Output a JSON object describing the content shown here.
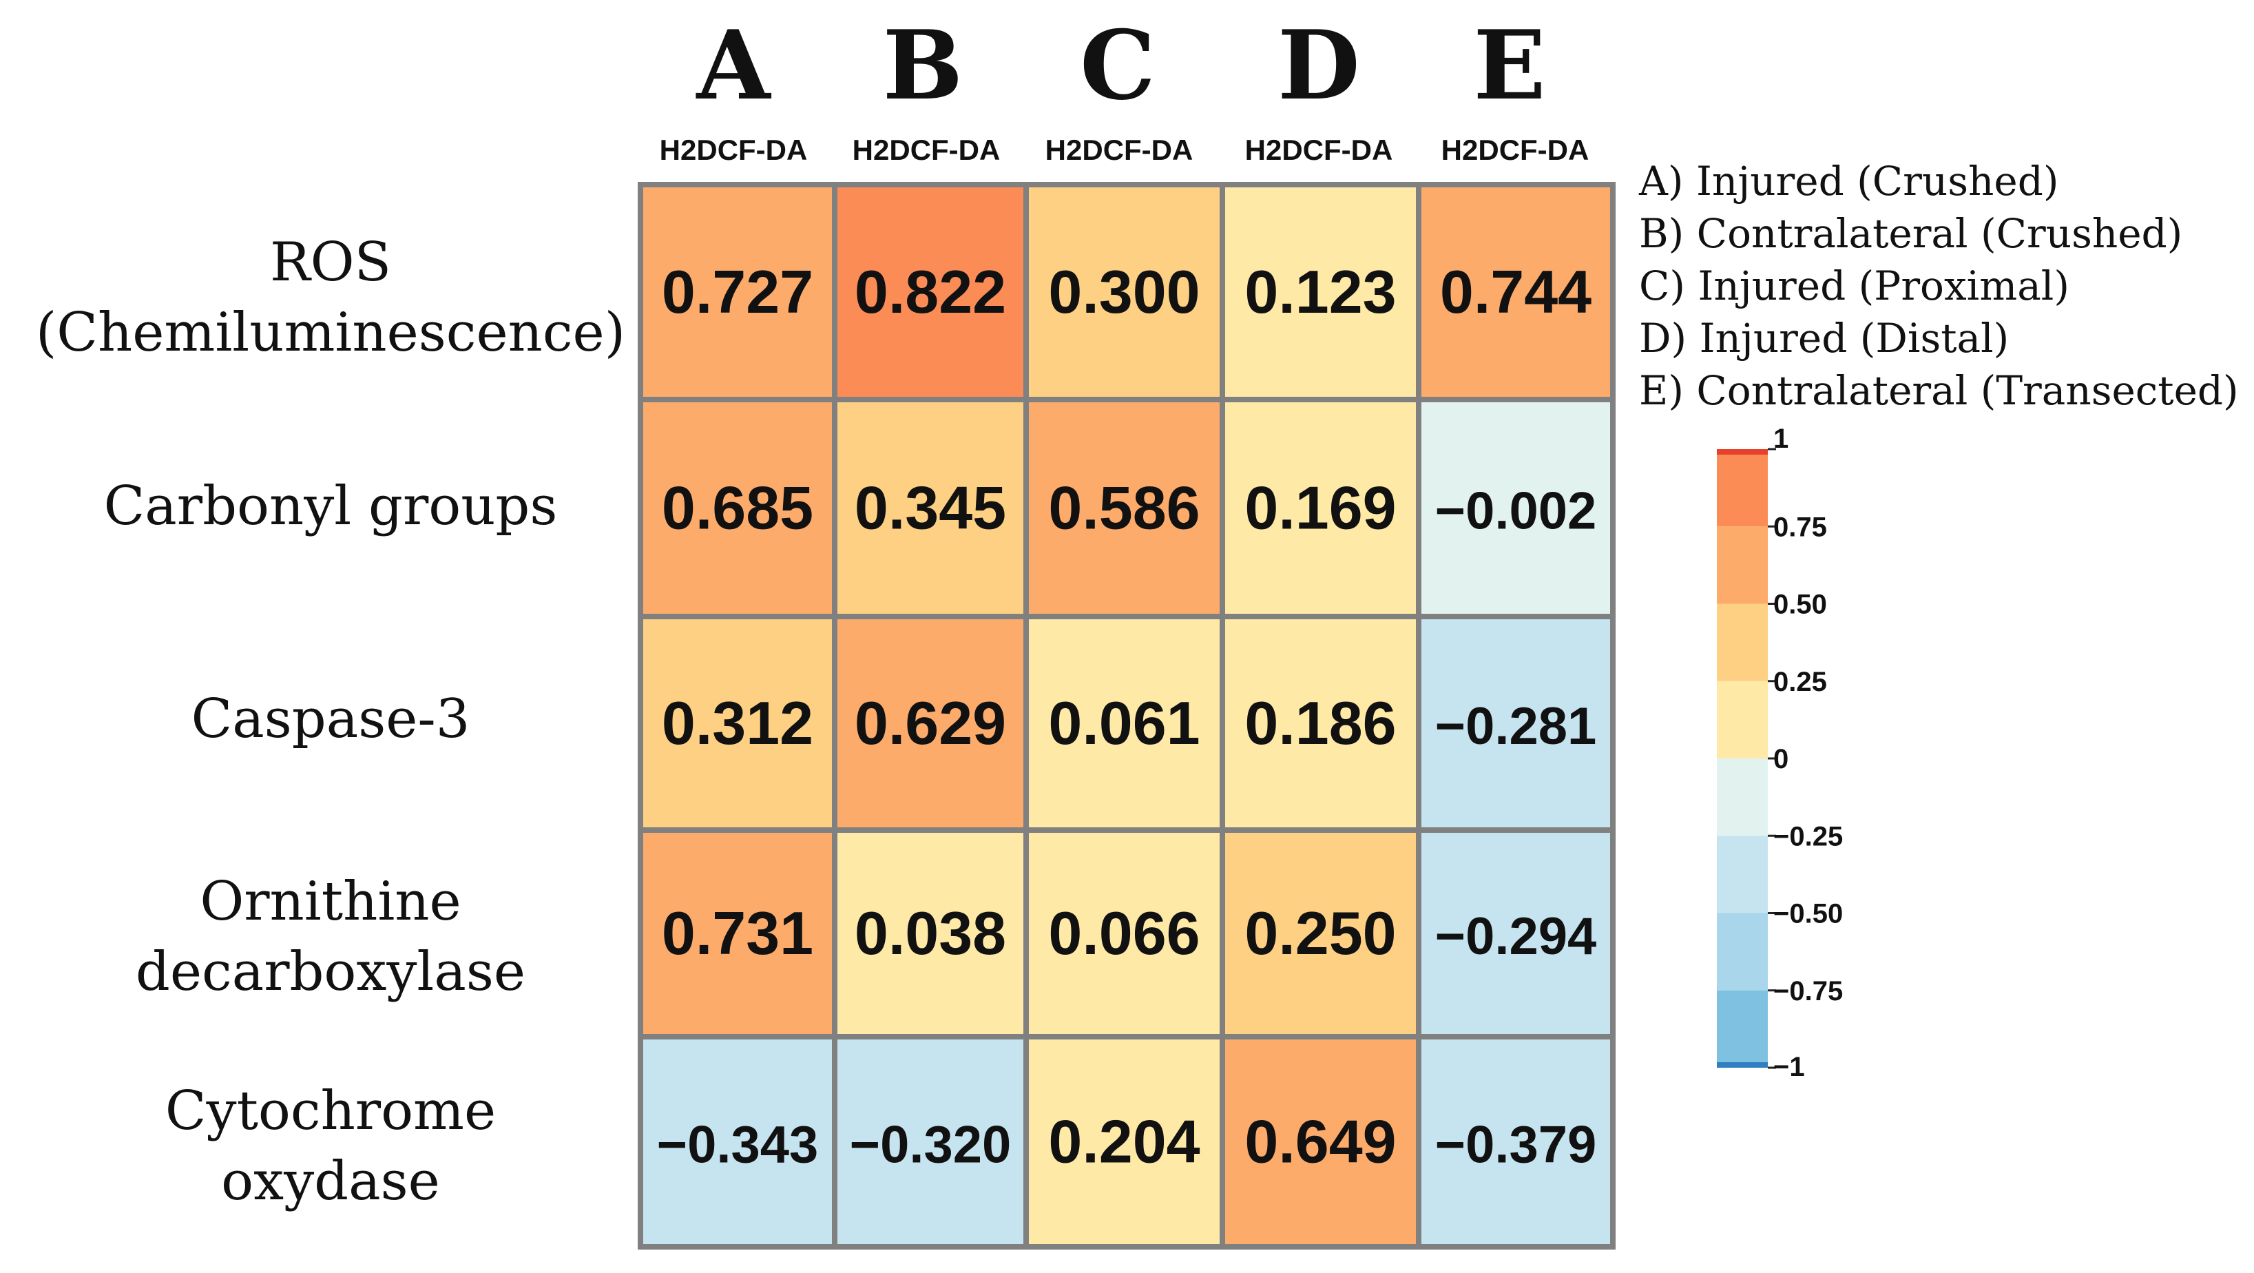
{
  "chart_data": {
    "type": "heatmap",
    "columns": [
      {
        "letter": "A",
        "sublabel": "H2DCF-DA"
      },
      {
        "letter": "B",
        "sublabel": "H2DCF-DA"
      },
      {
        "letter": "C",
        "sublabel": "H2DCF-DA"
      },
      {
        "letter": "D",
        "sublabel": "H2DCF-DA"
      },
      {
        "letter": "E",
        "sublabel": "H2DCF-DA"
      }
    ],
    "rows": [
      {
        "lines": [
          "ROS",
          "(Chemiluminescence)"
        ]
      },
      {
        "lines": [
          "Carbonyl groups"
        ]
      },
      {
        "lines": [
          "Caspase-3"
        ]
      },
      {
        "lines": [
          "Ornithine",
          "decarboxylase"
        ]
      },
      {
        "lines": [
          "Cytochrome",
          "oxydase"
        ]
      }
    ],
    "values": [
      [
        0.727,
        0.822,
        0.3,
        0.123,
        0.744
      ],
      [
        0.685,
        0.345,
        0.586,
        0.169,
        -0.002
      ],
      [
        0.312,
        0.629,
        0.061,
        0.186,
        -0.281
      ],
      [
        0.731,
        0.038,
        0.066,
        0.25,
        -0.294
      ],
      [
        -0.343,
        -0.32,
        0.204,
        0.649,
        -0.379
      ]
    ],
    "value_labels": [
      [
        "0.727",
        "0.822",
        "0.300",
        "0.123",
        "0.744"
      ],
      [
        "0.685",
        "0.345",
        "0.586",
        "0.169",
        "−0.002"
      ],
      [
        "0.312",
        "0.629",
        "0.061",
        "0.186",
        "−0.281"
      ],
      [
        "0.731",
        "0.038",
        "0.066",
        "0.250",
        "−0.294"
      ],
      [
        "−0.343",
        "−0.320",
        "0.204",
        "0.649",
        "−0.379"
      ]
    ],
    "legend": [
      "A) Injured (Crushed)",
      "B) Contralateral (Crushed)",
      "C) Injured (Proximal)",
      "D) Injured (Distal)",
      "E) Contralateral (Transected)"
    ],
    "colorbar": {
      "range": [
        -1,
        1
      ],
      "ticks": [
        {
          "value": 1,
          "label": "1"
        },
        {
          "value": 0.75,
          "label": "0.75"
        },
        {
          "value": 0.5,
          "label": "0.50"
        },
        {
          "value": 0.25,
          "label": "0.25"
        },
        {
          "value": 0,
          "label": "0"
        },
        {
          "value": -0.25,
          "label": "−0.25"
        },
        {
          "value": -0.5,
          "label": "−0.50"
        },
        {
          "value": -0.75,
          "label": "−0.75"
        },
        {
          "value": -1,
          "label": "−1"
        }
      ],
      "bands": [
        {
          "from": 0.75,
          "to": 1,
          "color": "#fb8c56"
        },
        {
          "from": 0.5,
          "to": 0.75,
          "color": "#fcab6b"
        },
        {
          "from": 0.25,
          "to": 0.5,
          "color": "#fdd083"
        },
        {
          "from": 0,
          "to": 0.25,
          "color": "#fee9a6"
        },
        {
          "from": -0.25,
          "to": 0,
          "color": "#e2f3ef"
        },
        {
          "from": -0.5,
          "to": -0.25,
          "color": "#c6e4f0"
        },
        {
          "from": -0.75,
          "to": -0.5,
          "color": "#a9d6ea"
        },
        {
          "from": -1,
          "to": -0.75,
          "color": "#7fc1e0"
        }
      ],
      "max_edge_color": "#e8402c",
      "min_edge_color": "#2f7fc1"
    },
    "colors": {
      "grid_border": "#808080",
      "text": "#111111"
    }
  }
}
